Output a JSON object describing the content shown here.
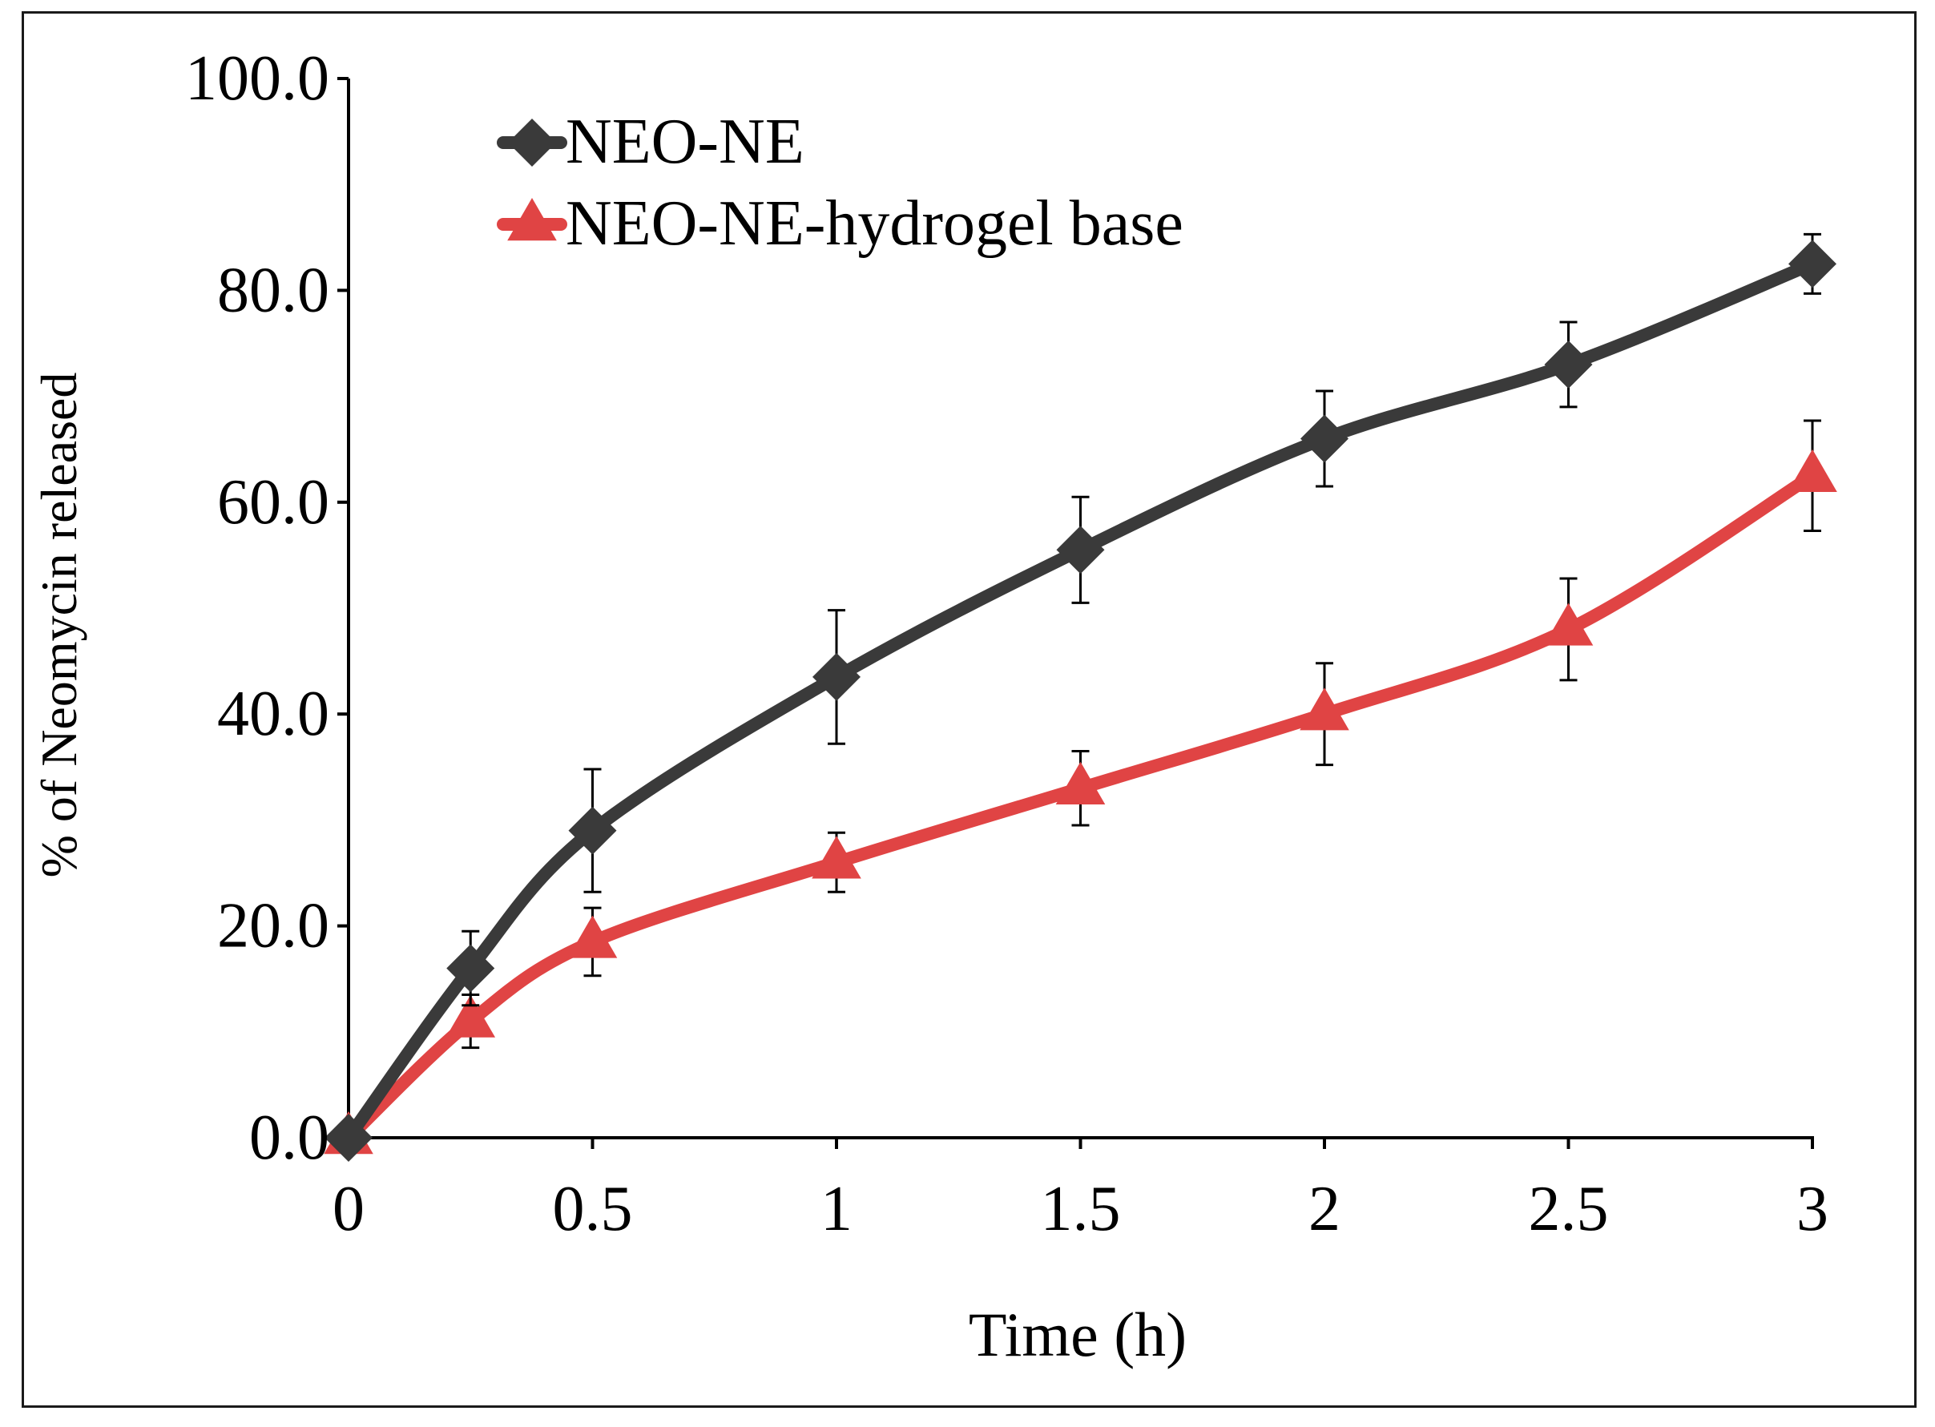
{
  "chart_data": {
    "type": "line",
    "title": "",
    "xlabel": "Time (h)",
    "ylabel": "% of Neomycin released",
    "x": [
      0,
      0.25,
      0.5,
      1,
      1.5,
      2,
      2.5,
      3
    ],
    "xticks": [
      0,
      0.5,
      1,
      1.5,
      2,
      2.5,
      3
    ],
    "xtick_labels": [
      "0",
      "0.5",
      "1",
      "1.5",
      "2",
      "2.5",
      "3"
    ],
    "xlim": [
      0,
      3
    ],
    "yticks": [
      0,
      20,
      40,
      60,
      80,
      100
    ],
    "ytick_labels": [
      "0.0",
      "20.0",
      "40.0",
      "60.0",
      "80.0",
      "100.0"
    ],
    "ylim": [
      0,
      100
    ],
    "grid": false,
    "legend_position": "top-left",
    "series": [
      {
        "name": "NEO-NE",
        "color": "#3a3a3a",
        "marker": "diamond",
        "values": [
          0,
          16.0,
          29.0,
          43.5,
          55.5,
          66.0,
          73.0,
          82.5
        ],
        "errors": [
          0,
          3.5,
          5.8,
          6.3,
          5.0,
          4.5,
          4.0,
          2.8
        ]
      },
      {
        "name": "NEO-NE-hydrogel base",
        "color": "#e04444",
        "marker": "triangle",
        "values": [
          0,
          11.0,
          18.5,
          26.0,
          33.0,
          40.0,
          48.0,
          62.5
        ],
        "errors": [
          0,
          2.5,
          3.2,
          2.8,
          3.5,
          4.8,
          4.8,
          5.2
        ]
      }
    ]
  }
}
